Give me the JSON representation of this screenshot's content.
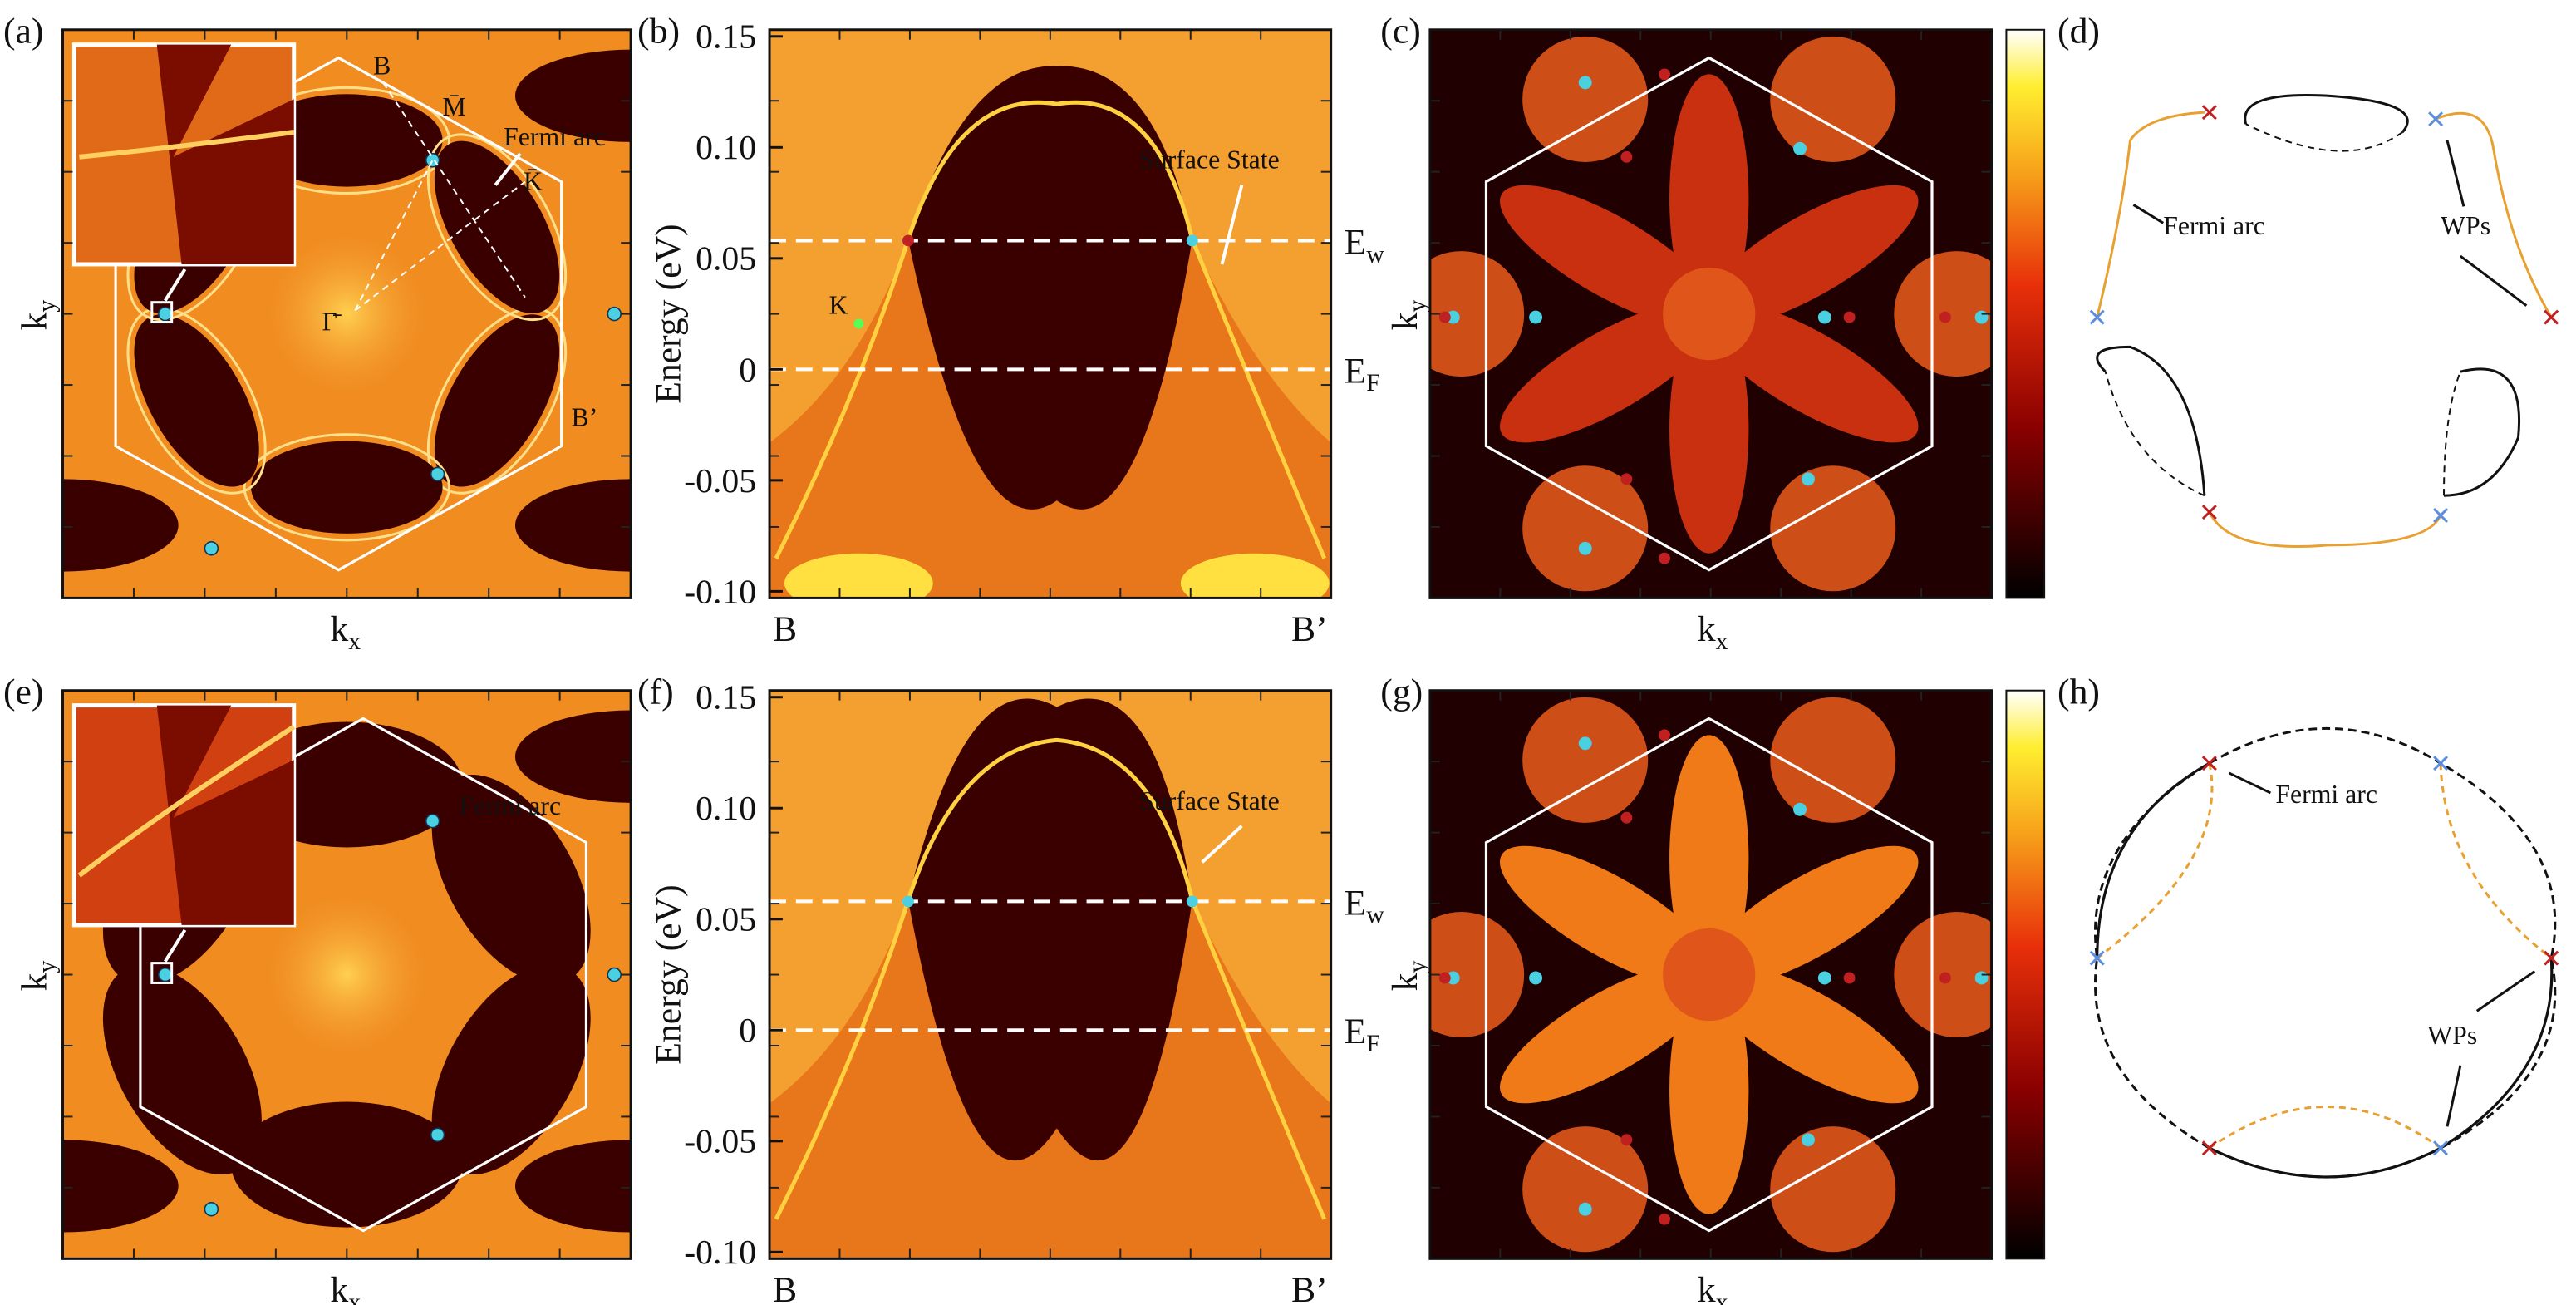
{
  "figure": {
    "energy_axis": {
      "label": "Energy (eV)",
      "ylim": [
        -0.103,
        0.153
      ],
      "yticks": [
        0.15,
        {
          "value": 0.1,
          "label": "0.10"
        },
        0.05,
        0,
        -0.05,
        {
          "value": -0.1,
          "label": "-0.10"
        }
      ],
      "levels": [
        {
          "label": {
            "base": "E",
            "sub": "w"
          },
          "value": 0.058
        },
        {
          "label": {
            "base": "E",
            "sub": "F"
          },
          "value": 0
        }
      ]
    },
    "k_labels": {
      "x": {
        "base": "k",
        "sub": "x"
      },
      "y": {
        "base": "k",
        "sub": "y"
      }
    },
    "path_labels": [
      "B",
      "B’"
    ],
    "panels": {
      "a": {
        "label": "(a)",
        "points": [
          "B",
          "M̄",
          "K̄",
          "Γ̄",
          "B’"
        ],
        "annotation": "Fermi arc"
      },
      "b": {
        "label": "(b)",
        "annotation": "Surface State",
        "point": "K"
      },
      "c": {
        "label": "(c)"
      },
      "d": {
        "label": "(d)",
        "annotations": [
          "Fermi arc",
          "WPs"
        ]
      },
      "e": {
        "label": "(e)",
        "annotation": "Fermi arc"
      },
      "f": {
        "label": "(f)",
        "annotation": "Surface State"
      },
      "g": {
        "label": "(g)"
      },
      "h": {
        "label": "(h)",
        "annotations": [
          "Fermi arc",
          "WPs"
        ]
      }
    }
  }
}
